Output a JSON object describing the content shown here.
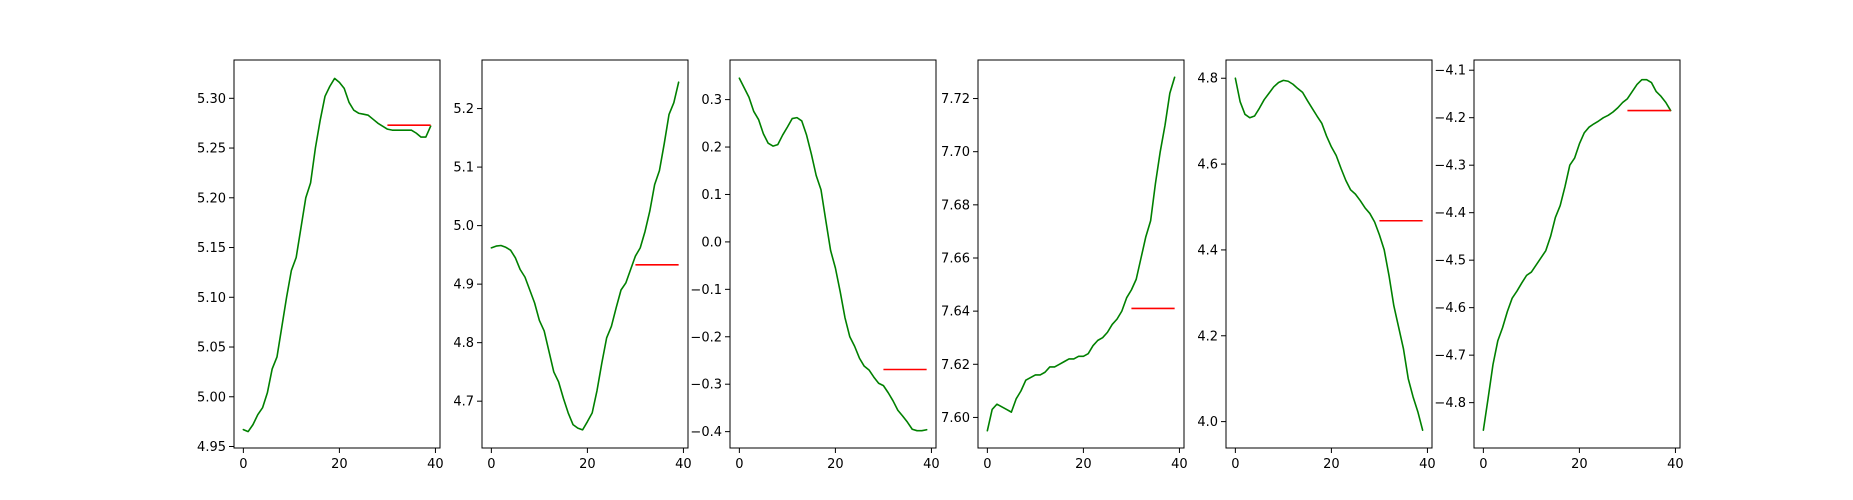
{
  "chart_data": [
    {
      "type": "line",
      "xlim": [
        -1.95,
        40.95
      ],
      "ylim": [
        4.9485,
        5.3385
      ],
      "xticks": [
        0,
        20,
        40
      ],
      "yticks": [
        4.95,
        5.0,
        5.05,
        5.1,
        5.15,
        5.2,
        5.25,
        5.3
      ],
      "ytick_labels": [
        "4.95",
        "5.00",
        "5.05",
        "5.10",
        "5.15",
        "5.20",
        "5.25",
        "5.30"
      ],
      "series": [
        {
          "color": "#008000",
          "x": [
            0,
            1,
            2,
            3,
            4,
            5,
            6,
            7,
            8,
            9,
            10,
            11,
            12,
            13,
            14,
            15,
            16,
            17,
            18,
            19,
            20,
            21,
            22,
            23,
            24,
            25,
            26,
            27,
            28,
            29,
            30,
            31,
            32,
            33,
            34,
            35,
            36,
            37,
            38,
            39
          ],
          "y": [
            4.967,
            4.965,
            4.972,
            4.982,
            4.989,
            5.004,
            5.028,
            5.04,
            5.07,
            5.1,
            5.127,
            5.14,
            5.17,
            5.2,
            5.215,
            5.25,
            5.278,
            5.302,
            5.312,
            5.32,
            5.316,
            5.31,
            5.296,
            5.288,
            5.285,
            5.284,
            5.283,
            5.279,
            5.275,
            5.272,
            5.269,
            5.268,
            5.268,
            5.268,
            5.268,
            5.268,
            5.265,
            5.261,
            5.261,
            5.272
          ]
        },
        {
          "color": "#ff0000",
          "x": [
            30,
            39
          ],
          "y": [
            5.273,
            5.273
          ]
        }
      ]
    },
    {
      "type": "line",
      "xlim": [
        -1.95,
        40.95
      ],
      "ylim": [
        4.62,
        5.283
      ],
      "xticks": [
        0,
        20,
        40
      ],
      "yticks": [
        4.7,
        4.8,
        4.9,
        5.0,
        5.1,
        5.2
      ],
      "ytick_labels": [
        "4.7",
        "4.8",
        "4.9",
        "5.0",
        "5.1",
        "5.2"
      ],
      "series": [
        {
          "color": "#008000",
          "x": [
            0,
            1,
            2,
            3,
            4,
            5,
            6,
            7,
            8,
            9,
            10,
            11,
            12,
            13,
            14,
            15,
            16,
            17,
            18,
            19,
            20,
            21,
            22,
            23,
            24,
            25,
            26,
            27,
            28,
            29,
            30,
            31,
            32,
            33,
            34,
            35,
            36,
            37,
            38,
            39
          ],
          "y": [
            4.962,
            4.965,
            4.966,
            4.963,
            4.958,
            4.945,
            4.925,
            4.912,
            4.89,
            4.868,
            4.838,
            4.82,
            4.785,
            4.75,
            4.733,
            4.705,
            4.68,
            4.66,
            4.654,
            4.651,
            4.665,
            4.68,
            4.718,
            4.765,
            4.808,
            4.828,
            4.86,
            4.89,
            4.902,
            4.925,
            4.948,
            4.962,
            4.99,
            5.025,
            5.07,
            5.094,
            5.14,
            5.19,
            5.21,
            5.245
          ]
        },
        {
          "color": "#ff0000",
          "x": [
            30,
            39
          ],
          "y": [
            4.933,
            4.933
          ]
        }
      ]
    },
    {
      "type": "line",
      "xlim": [
        -1.95,
        40.95
      ],
      "ylim": [
        -0.4345,
        0.3835
      ],
      "xticks": [
        0,
        20,
        40
      ],
      "yticks": [
        -0.4,
        -0.3,
        -0.2,
        -0.1,
        0.0,
        0.1,
        0.2,
        0.3
      ],
      "ytick_labels": [
        "−0.4",
        "−0.3",
        "−0.2",
        "−0.1",
        "0.0",
        "0.1",
        "0.2",
        "0.3"
      ],
      "series": [
        {
          "color": "#008000",
          "x": [
            0,
            1,
            2,
            3,
            4,
            5,
            6,
            7,
            8,
            9,
            10,
            11,
            12,
            13,
            14,
            15,
            16,
            17,
            18,
            19,
            20,
            21,
            22,
            23,
            24,
            25,
            26,
            27,
            28,
            29,
            30,
            31,
            32,
            33,
            34,
            35,
            36,
            37,
            38,
            39
          ],
          "y": [
            0.345,
            0.325,
            0.305,
            0.275,
            0.258,
            0.228,
            0.208,
            0.202,
            0.205,
            0.225,
            0.242,
            0.26,
            0.262,
            0.255,
            0.225,
            0.185,
            0.14,
            0.11,
            0.045,
            -0.018,
            -0.055,
            -0.105,
            -0.16,
            -0.2,
            -0.22,
            -0.245,
            -0.262,
            -0.27,
            -0.285,
            -0.298,
            -0.303,
            -0.318,
            -0.335,
            -0.355,
            -0.367,
            -0.38,
            -0.395,
            -0.398,
            -0.398,
            -0.396
          ]
        },
        {
          "color": "#ff0000",
          "x": [
            30,
            39
          ],
          "y": [
            -0.269,
            -0.269
          ]
        }
      ]
    },
    {
      "type": "line",
      "xlim": [
        -1.95,
        40.95
      ],
      "ylim": [
        7.5885,
        7.7345
      ],
      "xticks": [
        0,
        20,
        40
      ],
      "yticks": [
        7.6,
        7.62,
        7.64,
        7.66,
        7.68,
        7.7,
        7.72
      ],
      "ytick_labels": [
        "7.60",
        "7.62",
        "7.64",
        "7.66",
        "7.68",
        "7.70",
        "7.72"
      ],
      "series": [
        {
          "color": "#008000",
          "x": [
            0,
            1,
            2,
            3,
            4,
            5,
            6,
            7,
            8,
            9,
            10,
            11,
            12,
            13,
            14,
            15,
            16,
            17,
            18,
            19,
            20,
            21,
            22,
            23,
            24,
            25,
            26,
            27,
            28,
            29,
            30,
            31,
            32,
            33,
            34,
            35,
            36,
            37,
            38,
            39
          ],
          "y": [
            7.595,
            7.603,
            7.605,
            7.604,
            7.603,
            7.602,
            7.607,
            7.61,
            7.614,
            7.615,
            7.616,
            7.616,
            7.617,
            7.619,
            7.619,
            7.62,
            7.621,
            7.622,
            7.622,
            7.623,
            7.623,
            7.624,
            7.627,
            7.629,
            7.63,
            7.632,
            7.635,
            7.637,
            7.64,
            7.645,
            7.648,
            7.652,
            7.66,
            7.668,
            7.674,
            7.688,
            7.7,
            7.71,
            7.722,
            7.728
          ]
        },
        {
          "color": "#ff0000",
          "x": [
            30,
            39
          ],
          "y": [
            7.641,
            7.641
          ]
        }
      ]
    },
    {
      "type": "line",
      "xlim": [
        -1.95,
        40.95
      ],
      "ylim": [
        3.9385,
        4.8425
      ],
      "xticks": [
        0,
        20,
        40
      ],
      "yticks": [
        4.0,
        4.2,
        4.4,
        4.6,
        4.8
      ],
      "ytick_labels": [
        "4.0",
        "4.2",
        "4.4",
        "4.6",
        "4.8"
      ],
      "series": [
        {
          "color": "#008000",
          "x": [
            0,
            1,
            2,
            3,
            4,
            5,
            6,
            7,
            8,
            9,
            10,
            11,
            12,
            13,
            14,
            15,
            16,
            17,
            18,
            19,
            20,
            21,
            22,
            23,
            24,
            25,
            26,
            27,
            28,
            29,
            30,
            31,
            32,
            33,
            34,
            35,
            36,
            37,
            38,
            39
          ],
          "y": [
            4.8,
            4.745,
            4.716,
            4.708,
            4.712,
            4.73,
            4.75,
            4.765,
            4.78,
            4.79,
            4.795,
            4.793,
            4.786,
            4.776,
            4.767,
            4.748,
            4.73,
            4.712,
            4.695,
            4.665,
            4.64,
            4.62,
            4.59,
            4.562,
            4.54,
            4.53,
            4.515,
            4.498,
            4.485,
            4.465,
            4.435,
            4.4,
            4.34,
            4.27,
            4.22,
            4.17,
            4.1,
            4.058,
            4.023,
            3.98
          ]
        },
        {
          "color": "#ff0000",
          "x": [
            30,
            39
          ],
          "y": [
            4.468,
            4.468
          ]
        }
      ]
    },
    {
      "type": "line",
      "xlim": [
        -1.95,
        40.95
      ],
      "ylim": [
        -4.8955,
        -4.0785
      ],
      "xticks": [
        0,
        20,
        40
      ],
      "yticks": [
        -4.8,
        -4.7,
        -4.6,
        -4.5,
        -4.4,
        -4.3,
        -4.2,
        -4.1
      ],
      "ytick_labels": [
        "−4.8",
        "−4.7",
        "−4.6",
        "−4.5",
        "−4.4",
        "−4.3",
        "−4.2",
        "−4.1"
      ],
      "series": [
        {
          "color": "#008000",
          "x": [
            0,
            1,
            2,
            3,
            4,
            5,
            6,
            7,
            8,
            9,
            10,
            11,
            12,
            13,
            14,
            15,
            16,
            17,
            18,
            19,
            20,
            21,
            22,
            23,
            24,
            25,
            26,
            27,
            28,
            29,
            30,
            31,
            32,
            33,
            34,
            35,
            36,
            37,
            38,
            39
          ],
          "y": [
            -4.858,
            -4.79,
            -4.72,
            -4.67,
            -4.642,
            -4.608,
            -4.58,
            -4.565,
            -4.548,
            -4.532,
            -4.525,
            -4.51,
            -4.495,
            -4.48,
            -4.45,
            -4.41,
            -4.385,
            -4.345,
            -4.3,
            -4.285,
            -4.255,
            -4.232,
            -4.22,
            -4.213,
            -4.207,
            -4.2,
            -4.195,
            -4.188,
            -4.179,
            -4.168,
            -4.16,
            -4.145,
            -4.13,
            -4.12,
            -4.12,
            -4.126,
            -4.145,
            -4.155,
            -4.168,
            -4.185
          ]
        },
        {
          "color": "#ff0000",
          "x": [
            30,
            39
          ],
          "y": [
            -4.185,
            -4.185
          ]
        }
      ]
    }
  ]
}
